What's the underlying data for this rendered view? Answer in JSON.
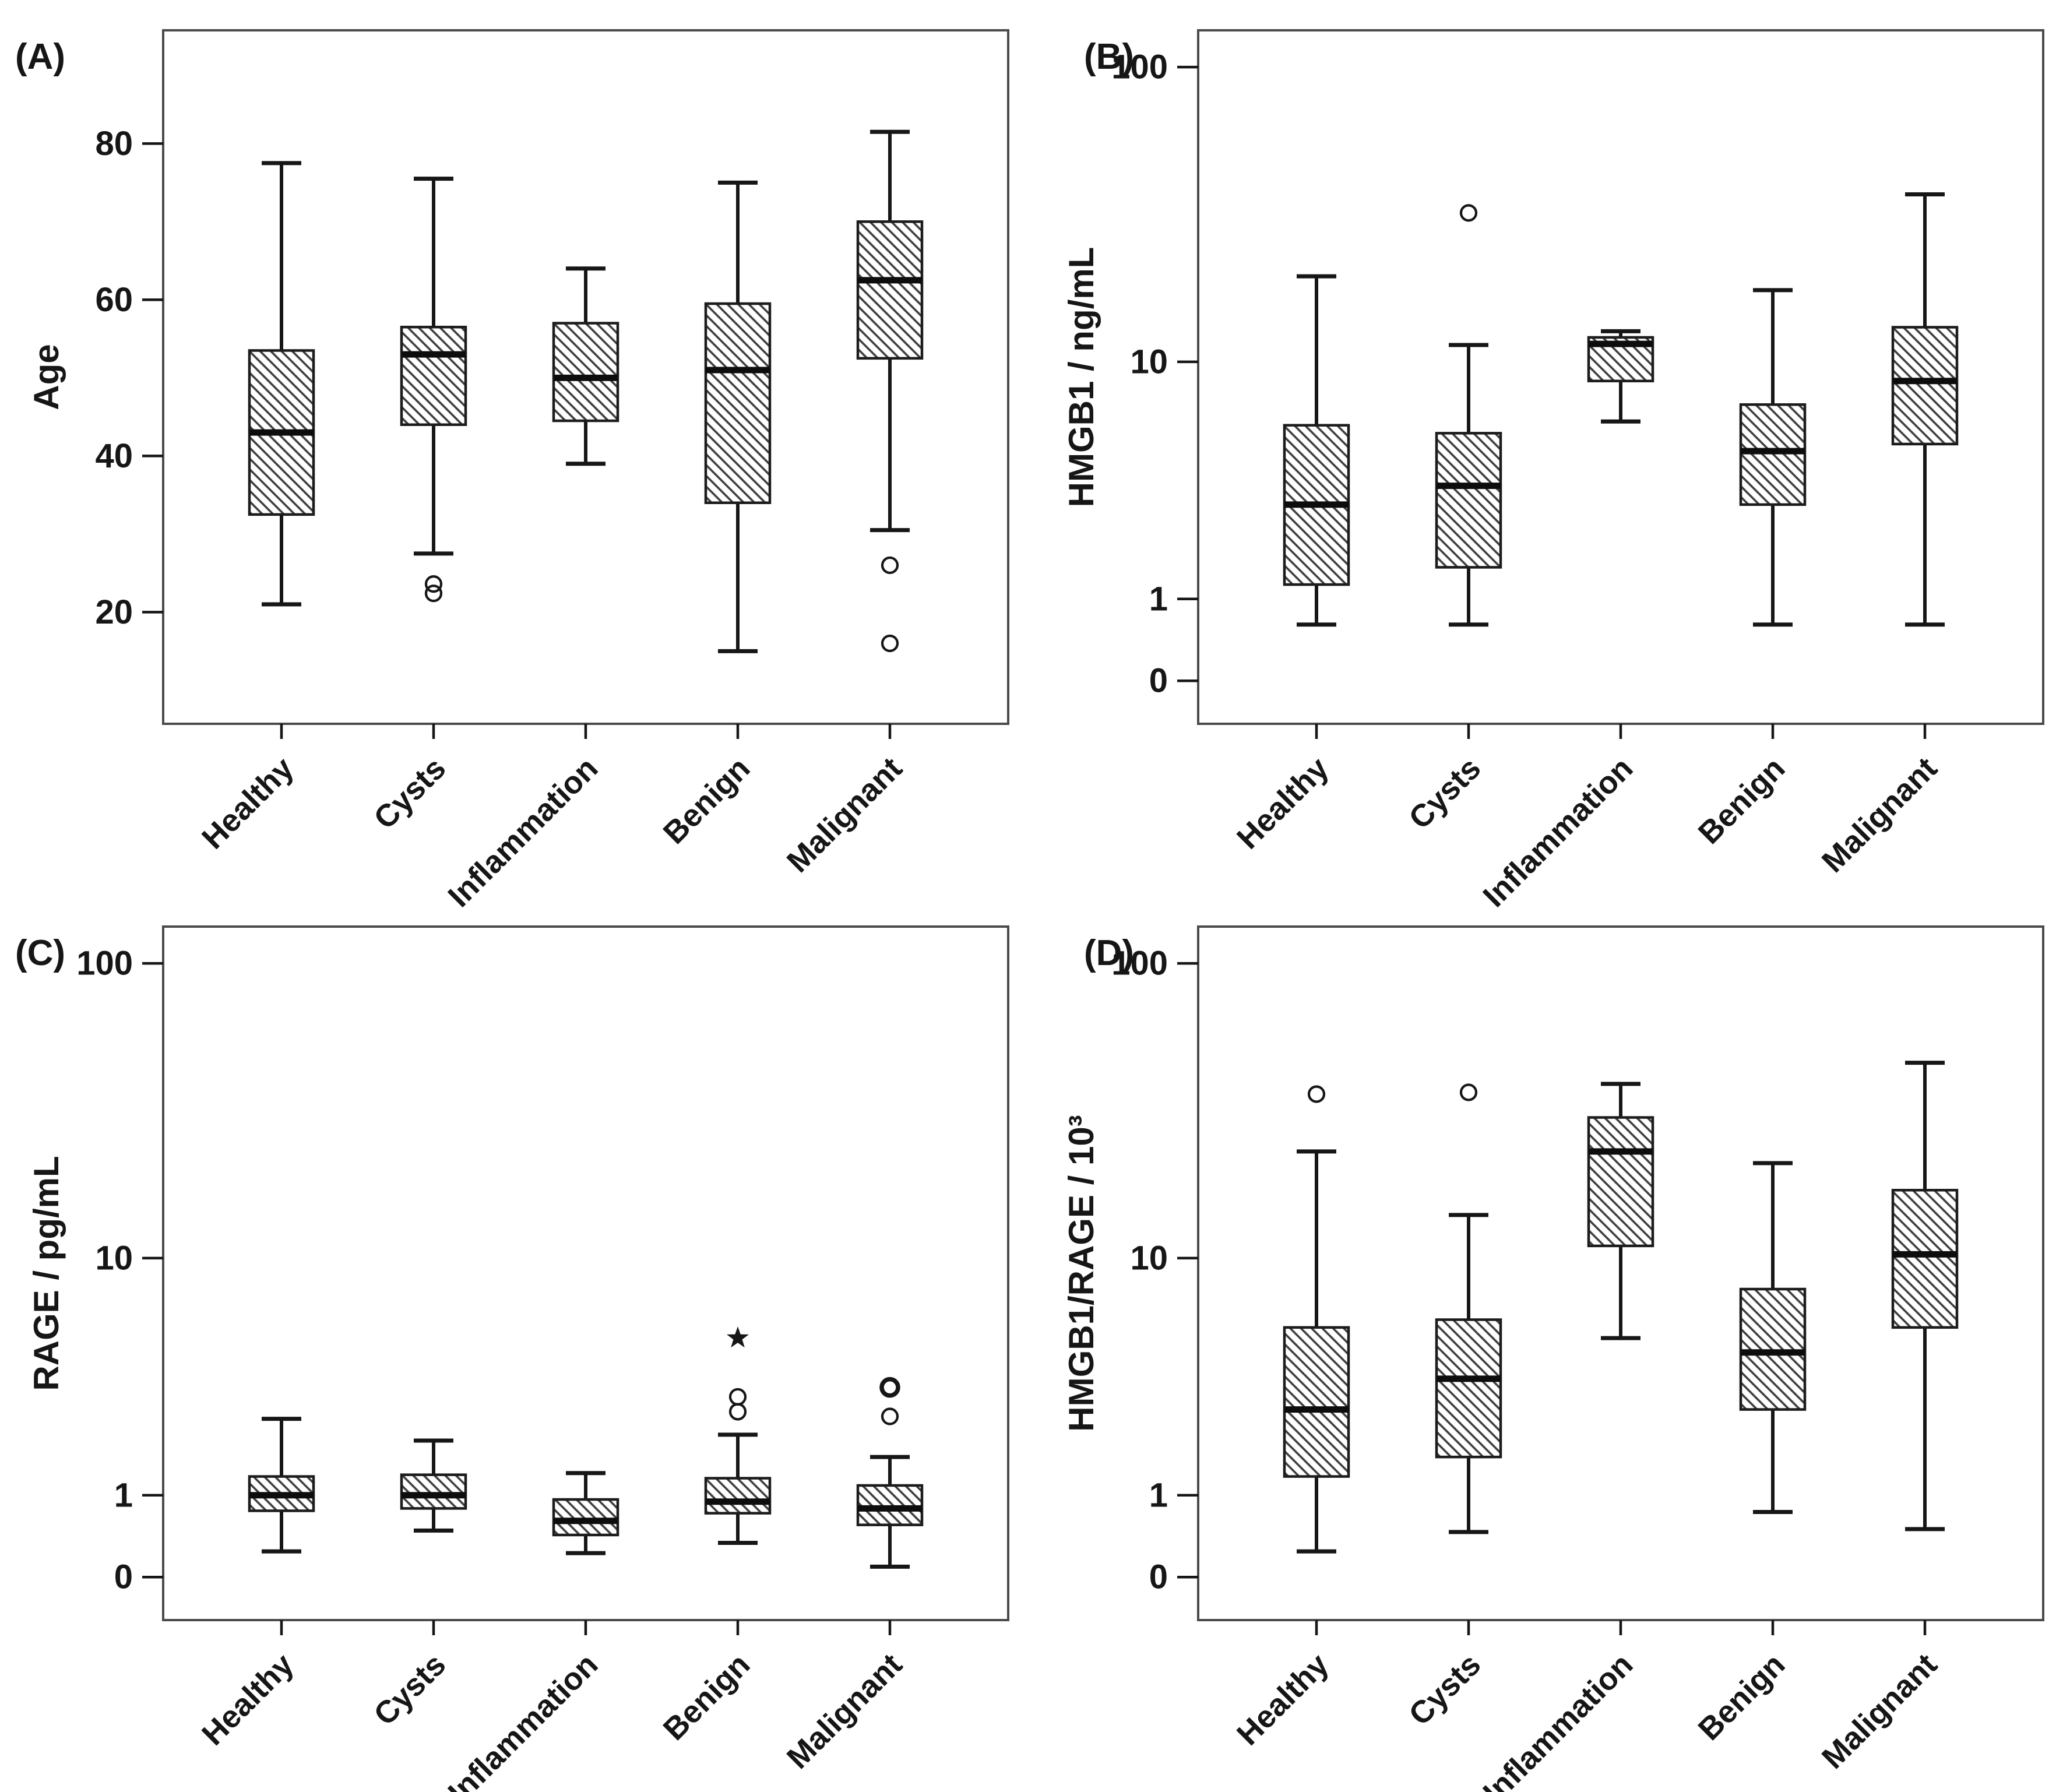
{
  "figure": {
    "description": "Four-panel boxplot figure comparing five patient groups",
    "categories": [
      "Healthy",
      "Cysts",
      "Inflammation",
      "Benign",
      "Malignant"
    ]
  },
  "colors": {
    "background": "#ffffff",
    "ink": "#161616",
    "plot_border": "#4a4a4a",
    "box_stroke": "#1c1c1c",
    "hatch_line": "#3d3d3d",
    "median": "#0d0d0d"
  },
  "chart_data": [
    {
      "type": "box",
      "panel_label": "(A)",
      "ylabel": "Age",
      "scale": "linear",
      "ylim": [
        5.7,
        94.5
      ],
      "grid": false,
      "yticks": [
        {
          "v": 80,
          "label": "80"
        },
        {
          "v": 60,
          "label": "60"
        },
        {
          "v": 40,
          "label": "40"
        },
        {
          "v": 20,
          "label": "20"
        }
      ],
      "categories": [
        "Healthy",
        "Cysts",
        "Inflammation",
        "Benign",
        "Malignant"
      ],
      "boxes": [
        {
          "category": "Healthy",
          "whisker_low": 21,
          "q1": 32.5,
          "median": 43,
          "q3": 53.5,
          "whisker_high": 77.5,
          "outliers": [],
          "outliers_bold": [],
          "extremes": []
        },
        {
          "category": "Cysts",
          "whisker_low": 27.5,
          "q1": 44,
          "median": 53,
          "q3": 56.5,
          "whisker_high": 75.5,
          "outliers": [
            23.6,
            22.4
          ],
          "outliers_bold": [],
          "extremes": []
        },
        {
          "category": "Inflammation",
          "whisker_low": 39,
          "q1": 44.5,
          "median": 50,
          "q3": 57,
          "whisker_high": 64,
          "outliers": [],
          "outliers_bold": [],
          "extremes": []
        },
        {
          "category": "Benign",
          "whisker_low": 15,
          "q1": 34,
          "median": 51,
          "q3": 59.5,
          "whisker_high": 75,
          "outliers": [],
          "outliers_bold": [],
          "extremes": []
        },
        {
          "category": "Malignant",
          "whisker_low": 30.5,
          "q1": 52.5,
          "median": 62.5,
          "q3": 70,
          "whisker_high": 81.5,
          "outliers": [
            26,
            16
          ],
          "outliers_bold": [],
          "extremes": []
        }
      ]
    },
    {
      "type": "box",
      "panel_label": "(B)",
      "ylabel": "HMGB1 / ng/mL",
      "scale": "log-broken",
      "grid": false,
      "yticks": [
        {
          "v": 100,
          "label": "100"
        },
        {
          "v": 10,
          "label": "10"
        },
        {
          "v": 1,
          "label": "1"
        },
        {
          "v": 0,
          "label": "0"
        }
      ],
      "categories": [
        "Healthy",
        "Cysts",
        "Inflammation",
        "Benign",
        "Malignant"
      ],
      "boxes": [
        {
          "category": "Healthy",
          "whisker_low": 0.78,
          "q1": 1.15,
          "median": 2.5,
          "q3": 5.4,
          "whisker_high": 19.5,
          "outliers": [],
          "outliers_bold": [],
          "extremes": []
        },
        {
          "category": "Cysts",
          "whisker_low": 0.78,
          "q1": 1.36,
          "median": 3.0,
          "q3": 5.0,
          "whisker_high": 11.4,
          "outliers": [
            32
          ],
          "outliers_bold": [],
          "extremes": []
        },
        {
          "category": "Inflammation",
          "whisker_low": 5.6,
          "q1": 8.3,
          "median": 11.5,
          "q3": 12.1,
          "whisker_high": 12.7,
          "outliers": [],
          "outliers_bold": [],
          "extremes": []
        },
        {
          "category": "Benign",
          "whisker_low": 0.78,
          "q1": 2.5,
          "median": 4.2,
          "q3": 6.6,
          "whisker_high": 17.5,
          "outliers": [],
          "outliers_bold": [],
          "extremes": []
        },
        {
          "category": "Malignant",
          "whisker_low": 0.78,
          "q1": 4.5,
          "median": 8.3,
          "q3": 13.1,
          "whisker_high": 37,
          "outliers": [],
          "outliers_bold": [],
          "extremes": []
        }
      ]
    },
    {
      "type": "box",
      "panel_label": "(C)",
      "ylabel": "RAGE / pg/mL",
      "scale": "log-broken",
      "grid": false,
      "yticks": [
        {
          "v": 100,
          "label": "100"
        },
        {
          "v": 10,
          "label": "10"
        },
        {
          "v": 1,
          "label": "1"
        },
        {
          "v": 0,
          "label": "0"
        }
      ],
      "categories": [
        "Healthy",
        "Cysts",
        "Inflammation",
        "Benign",
        "Malignant"
      ],
      "boxes": [
        {
          "category": "Healthy",
          "whisker_low": 0.58,
          "q1": 0.86,
          "median": 1.0,
          "q3": 1.2,
          "whisker_high": 2.1,
          "outliers": [],
          "outliers_bold": [],
          "extremes": []
        },
        {
          "category": "Cysts",
          "whisker_low": 0.71,
          "q1": 0.88,
          "median": 1.0,
          "q3": 1.22,
          "whisker_high": 1.7,
          "outliers": [],
          "outliers_bold": [],
          "extremes": []
        },
        {
          "category": "Inflammation",
          "whisker_low": 0.57,
          "q1": 0.68,
          "median": 0.78,
          "q3": 0.96,
          "whisker_high": 1.24,
          "outliers": [],
          "outliers_bold": [],
          "extremes": []
        },
        {
          "category": "Benign",
          "whisker_low": 0.63,
          "q1": 0.84,
          "median": 0.94,
          "q3": 1.18,
          "whisker_high": 1.8,
          "outliers": [
            2.25,
            2.6
          ],
          "outliers_bold": [],
          "extremes": [
            4.6
          ]
        },
        {
          "category": "Malignant",
          "whisker_low": 0.5,
          "q1": 0.75,
          "median": 0.88,
          "q3": 1.1,
          "whisker_high": 1.45,
          "outliers": [
            2.15
          ],
          "outliers_bold": [
            2.85
          ],
          "extremes": []
        }
      ]
    },
    {
      "type": "box",
      "panel_label": "(D)",
      "ylabel": "HMGB1/RAGE / 10³",
      "scale": "log-broken",
      "grid": false,
      "yticks": [
        {
          "v": 100,
          "label": "100"
        },
        {
          "v": 10,
          "label": "10"
        },
        {
          "v": 1,
          "label": "1"
        },
        {
          "v": 0,
          "label": "0"
        }
      ],
      "categories": [
        "Healthy",
        "Cysts",
        "Inflammation",
        "Benign",
        "Malignant"
      ],
      "boxes": [
        {
          "category": "Healthy",
          "whisker_low": 0.58,
          "q1": 1.2,
          "median": 2.3,
          "q3": 5.1,
          "whisker_high": 23,
          "outliers": [
            36
          ],
          "outliers_bold": [],
          "extremes": []
        },
        {
          "category": "Cysts",
          "whisker_low": 0.7,
          "q1": 1.45,
          "median": 3.1,
          "q3": 5.5,
          "whisker_high": 14,
          "outliers": [
            36.5
          ],
          "outliers_bold": [],
          "extremes": []
        },
        {
          "category": "Inflammation",
          "whisker_low": 4.6,
          "q1": 11,
          "median": 23,
          "q3": 30,
          "whisker_high": 39,
          "outliers": [],
          "outliers_bold": [],
          "extremes": []
        },
        {
          "category": "Benign",
          "whisker_low": 0.85,
          "q1": 2.3,
          "median": 4.0,
          "q3": 7.4,
          "whisker_high": 21,
          "outliers": [],
          "outliers_bold": [],
          "extremes": []
        },
        {
          "category": "Malignant",
          "whisker_low": 0.72,
          "q1": 5.1,
          "median": 10.3,
          "q3": 17,
          "whisker_high": 46,
          "outliers": [],
          "outliers_bold": [],
          "extremes": []
        }
      ]
    }
  ]
}
